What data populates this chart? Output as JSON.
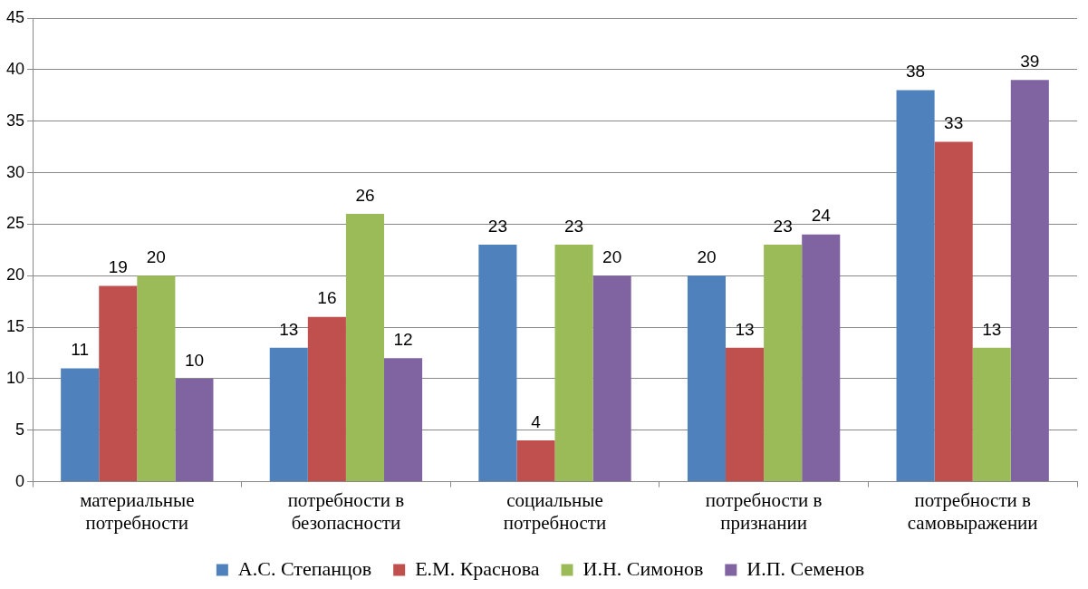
{
  "chart_data": {
    "type": "bar",
    "categories": [
      "материальные потребности",
      "потребности в безопасности",
      "социальные потребности",
      "потребности в признании",
      "потребности в самовыражении"
    ],
    "series": [
      {
        "name": "А.С. Степанцов",
        "color": "#4f81bd",
        "values": [
          11,
          13,
          23,
          20,
          38
        ]
      },
      {
        "name": "Е.М. Краснова",
        "color": "#c0504d",
        "values": [
          19,
          16,
          4,
          13,
          33
        ]
      },
      {
        "name": "И.Н. Симонов",
        "color": "#9bbb59",
        "values": [
          20,
          26,
          23,
          23,
          13
        ]
      },
      {
        "name": "И.П. Семенов",
        "color": "#8064a2",
        "values": [
          10,
          12,
          20,
          24,
          39
        ]
      }
    ],
    "ylim": [
      0,
      45
    ],
    "yticks": [
      0,
      5,
      10,
      15,
      20,
      25,
      30,
      35,
      40,
      45
    ],
    "grid": "y",
    "legend": "bottom",
    "data_labels": true
  }
}
